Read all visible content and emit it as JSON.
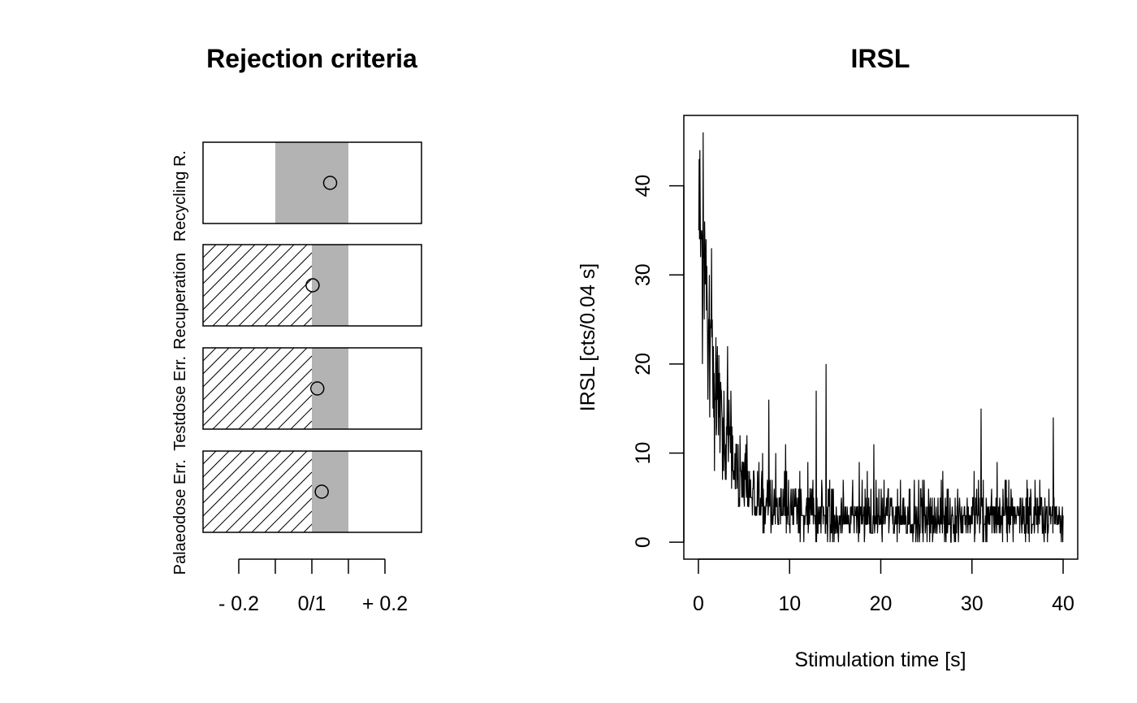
{
  "left_panel": {
    "title": "Rejection criteria",
    "x_tick_labels": [
      "- 0.2",
      "0/1",
      "+ 0.2"
    ]
  },
  "right_panel": {
    "title": "IRSL",
    "xlabel": "Stimulation time [s]",
    "ylabel": "IRSL [cts/0.04 s]"
  },
  "chart_data": [
    {
      "type": "scatter",
      "title": "Rejection criteria",
      "xlim": [
        -0.25,
        0.35
      ],
      "x_ticks": [
        -0.2,
        -0.1,
        0,
        0.1,
        0.2
      ],
      "x_tick_labels": [
        "- 0.2",
        "0/1",
        "+ 0.2"
      ],
      "rows": [
        {
          "name": "Recycling R.",
          "value": 0.05,
          "accept_range": [
            -0.1,
            0.1
          ],
          "hatched_below": false
        },
        {
          "name": "Recuperation",
          "value": 0.002,
          "accept_range": [
            0,
            0.1
          ],
          "hatched_below": true
        },
        {
          "name": "Testdose Err.",
          "value": 0.015,
          "accept_range": [
            0,
            0.1
          ],
          "hatched_below": true
        },
        {
          "name": "Palaeodose Err.",
          "value": 0.027,
          "accept_range": [
            0,
            0.1
          ],
          "hatched_below": true
        }
      ],
      "accept_fill_color": "#b3b3b3"
    },
    {
      "type": "line",
      "title": "IRSL",
      "xlabel": "Stimulation time [s]",
      "ylabel": "IRSL [cts/0.04 s]",
      "xlim": [
        -1.6,
        41.6
      ],
      "ylim": [
        -1.9,
        47.9
      ],
      "x_ticks": [
        0,
        10,
        20,
        30,
        40
      ],
      "y_ticks": [
        0,
        10,
        20,
        30,
        40
      ],
      "x_step": 0.04,
      "x_range": [
        0.04,
        40
      ],
      "n_points": 1000,
      "decay": {
        "amplitude": 35,
        "tau_s": 2.3,
        "background": 3
      },
      "visible_peaks": [
        {
          "x": 0.5,
          "y": 46
        },
        {
          "x": 3.2,
          "y": 22
        },
        {
          "x": 7.7,
          "y": 16
        },
        {
          "x": 12.9,
          "y": 17
        },
        {
          "x": 14.0,
          "y": 20
        },
        {
          "x": 31.0,
          "y": 15
        },
        {
          "x": 38.9,
          "y": 14
        }
      ],
      "line_color": "#000000"
    }
  ]
}
